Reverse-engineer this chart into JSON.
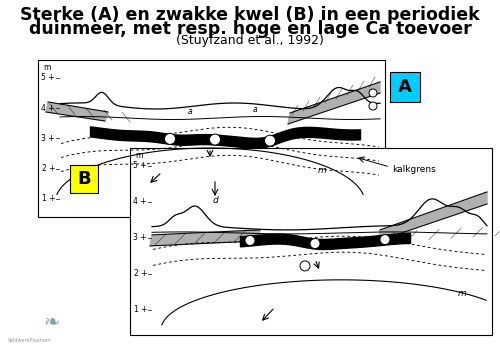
{
  "title_line1": "Sterke (A) en zwakke kwel (B) in een periodiek",
  "title_line2": "duinmeer, met resp. hoge en lage Ca toevoer",
  "title_line3": "(Stuyfzand et al., 1992)",
  "background_color": "#ffffff",
  "panel_A_label": "A",
  "panel_B_label": "B",
  "panel_A_label_bg": "#00ccff",
  "panel_B_label_bg": "#ffff00",
  "kalkgrens_text": "kalkgrens",
  "panel_A": {
    "l": 38,
    "r": 385,
    "t": 293,
    "b": 136
  },
  "panel_B": {
    "l": 130,
    "r": 492,
    "t": 205,
    "b": 18
  }
}
